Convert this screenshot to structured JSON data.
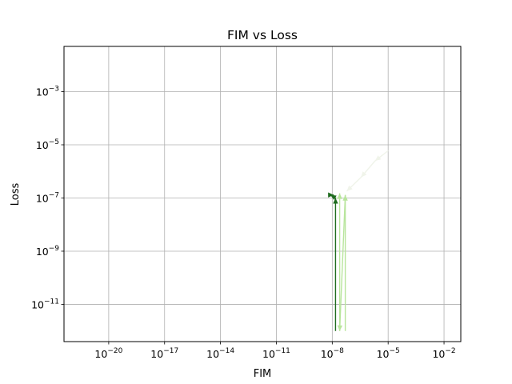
{
  "chart_data": {
    "type": "line",
    "title": "FIM vs Loss",
    "xlabel": "FIM",
    "ylabel": "Loss",
    "xscale": "log",
    "yscale": "log",
    "xlim_exp": [
      -22.4,
      -1.1
    ],
    "ylim_exp": [
      -12.4,
      -1.3
    ],
    "xticks": [
      {
        "base": "10",
        "exp": "−20",
        "value": -20
      },
      {
        "base": "10",
        "exp": "−17",
        "value": -17
      },
      {
        "base": "10",
        "exp": "−14",
        "value": -14
      },
      {
        "base": "10",
        "exp": "−11",
        "value": -11
      },
      {
        "base": "10",
        "exp": "−8",
        "value": -8
      },
      {
        "base": "10",
        "exp": "−5",
        "value": -5
      },
      {
        "base": "10",
        "exp": "−2",
        "value": -2
      }
    ],
    "yticks": [
      {
        "base": "10",
        "exp": "−11",
        "value": -11
      },
      {
        "base": "10",
        "exp": "−9",
        "value": -9
      },
      {
        "base": "10",
        "exp": "−7",
        "value": -7
      },
      {
        "base": "10",
        "exp": "−5",
        "value": -5
      },
      {
        "base": "10",
        "exp": "−3",
        "value": -3
      }
    ],
    "grid": true,
    "series": [
      {
        "color": "#f0f4ea",
        "points": [
          [
            1e-05,
            6e-06
          ],
          [
            2e-06,
            2.5e-06
          ],
          [
            3.5e-07,
            6e-07
          ],
          [
            6e-08,
            1.8e-07
          ]
        ]
      },
      {
        "color": "#b8e59c",
        "points": [
          [
            5e-08,
            1e-12
          ],
          [
            5e-08,
            1.3e-07
          ],
          [
            2.5e-08,
            1e-12
          ],
          [
            2.5e-08,
            1.5e-07
          ]
        ]
      },
      {
        "color": "#1e6b1e",
        "points": [
          [
            1.5e-08,
            1e-12
          ],
          [
            1.5e-08,
            1e-07
          ],
          [
            8e-09,
            1.3e-07
          ],
          [
            1.2e-08,
            1.3e-07
          ]
        ]
      }
    ]
  }
}
